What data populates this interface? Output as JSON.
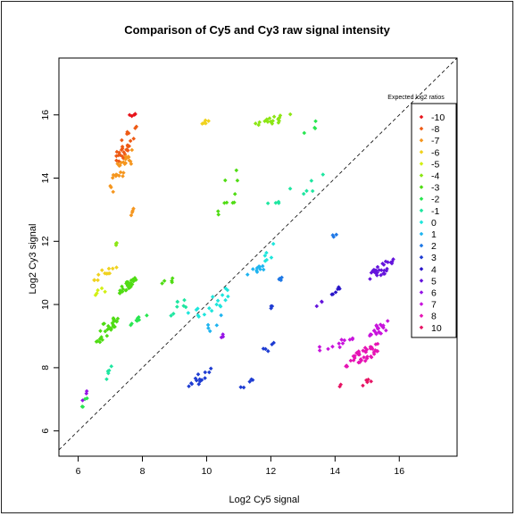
{
  "chart_data": {
    "type": "scatter",
    "title": "Comparison of Cy5 and Cy3 raw signal intensity",
    "xlabel": "Log2 Cy5 signal",
    "ylabel": "Log2 Cy3 signal",
    "xlim": [
      5.4,
      17.8
    ],
    "ylim": [
      5.2,
      17.8
    ],
    "xticks": [
      6,
      8,
      10,
      12,
      14,
      16
    ],
    "yticks": [
      6,
      8,
      10,
      12,
      14,
      16
    ],
    "grid": false,
    "diagonal": "y = x (dashed)",
    "legend": {
      "title": "Expected log2 ratios",
      "placement": "right",
      "entries": [
        {
          "label": "-10",
          "color": "#e8141c"
        },
        {
          "label": "-8",
          "color": "#ee5a14"
        },
        {
          "label": "-7",
          "color": "#f5961e"
        },
        {
          "label": "-6",
          "color": "#f0d21e"
        },
        {
          "label": "-5",
          "color": "#d2f014"
        },
        {
          "label": "-4",
          "color": "#8ce614"
        },
        {
          "label": "-3",
          "color": "#50dc14"
        },
        {
          "label": "-2",
          "color": "#28e650"
        },
        {
          "label": "-1",
          "color": "#1ee6a0"
        },
        {
          "label": "0",
          "color": "#1ee6dc"
        },
        {
          "label": "1",
          "color": "#1eb4f0"
        },
        {
          "label": "2",
          "color": "#1e78e6"
        },
        {
          "label": "3",
          "color": "#1e3cd2"
        },
        {
          "label": "4",
          "color": "#2814c8"
        },
        {
          "label": "5",
          "color": "#6414dc"
        },
        {
          "label": "6",
          "color": "#9614e6"
        },
        {
          "label": "7",
          "color": "#c814dc"
        },
        {
          "label": "8",
          "color": "#e614b4"
        },
        {
          "label": "10",
          "color": "#e61464"
        }
      ]
    },
    "clusters": [
      {
        "series": "-10",
        "x": [
          7.4,
          7.9
        ],
        "y": [
          15.9,
          16.05
        ],
        "n": 5
      },
      {
        "series": "-8",
        "x": [
          7.0,
          7.9
        ],
        "y": [
          14.3,
          15.8
        ],
        "n": 30
      },
      {
        "series": "-7",
        "x": [
          6.9,
          7.8
        ],
        "y": [
          13.4,
          15.0
        ],
        "n": 28
      },
      {
        "series": "-7",
        "x": [
          7.5,
          7.8
        ],
        "y": [
          12.7,
          13.1
        ],
        "n": 4
      },
      {
        "series": "-6",
        "x": [
          9.7,
          10.3
        ],
        "y": [
          15.6,
          16.0
        ],
        "n": 5
      },
      {
        "series": "-6",
        "x": [
          6.4,
          7.3
        ],
        "y": [
          10.7,
          11.3
        ],
        "n": 12
      },
      {
        "series": "-5",
        "x": [
          6.4,
          7.0
        ],
        "y": [
          10.2,
          10.6
        ],
        "n": 5
      },
      {
        "series": "-4",
        "x": [
          11.3,
          12.7
        ],
        "y": [
          15.6,
          16.05
        ],
        "n": 20
      },
      {
        "series": "-4",
        "x": [
          7.1,
          7.3
        ],
        "y": [
          11.8,
          12.0
        ],
        "n": 3
      },
      {
        "series": "-3",
        "x": [
          7.2,
          7.9
        ],
        "y": [
          10.3,
          10.9
        ],
        "n": 32
      },
      {
        "series": "-3",
        "x": [
          6.5,
          7.3
        ],
        "y": [
          8.7,
          9.7
        ],
        "n": 30
      },
      {
        "series": "-3",
        "x": [
          10.2,
          11.5
        ],
        "y": [
          12.6,
          14.9
        ],
        "n": 10
      },
      {
        "series": "-3",
        "x": [
          8.5,
          9.2
        ],
        "y": [
          10.6,
          10.9
        ],
        "n": 5
      },
      {
        "series": "-2",
        "x": [
          7.6,
          8.3
        ],
        "y": [
          9.3,
          9.8
        ],
        "n": 8
      },
      {
        "series": "-2",
        "x": [
          13.0,
          13.6
        ],
        "y": [
          15.4,
          15.9
        ],
        "n": 4
      },
      {
        "series": "-2",
        "x": [
          6.1,
          6.3
        ],
        "y": [
          6.7,
          7.1
        ],
        "n": 4
      },
      {
        "series": "-1",
        "x": [
          6.7,
          7.2
        ],
        "y": [
          7.5,
          8.2
        ],
        "n": 5
      },
      {
        "series": "-1",
        "x": [
          11.2,
          13.8
        ],
        "y": [
          12.5,
          14.2
        ],
        "n": 10
      },
      {
        "series": "-1",
        "x": [
          8.8,
          9.6
        ],
        "y": [
          9.6,
          10.4
        ],
        "n": 8
      },
      {
        "series": "0",
        "x": [
          9.2,
          11.0
        ],
        "y": [
          9.4,
          10.7
        ],
        "n": 18
      },
      {
        "series": "0",
        "x": [
          11.5,
          12.4
        ],
        "y": [
          11.2,
          12.2
        ],
        "n": 6
      },
      {
        "series": "1",
        "x": [
          11.2,
          12.0
        ],
        "y": [
          10.9,
          11.3
        ],
        "n": 10
      },
      {
        "series": "1",
        "x": [
          9.8,
          10.6
        ],
        "y": [
          9.0,
          9.8
        ],
        "n": 5
      },
      {
        "series": "2",
        "x": [
          12.2,
          12.4
        ],
        "y": [
          10.7,
          10.9
        ],
        "n": 4
      },
      {
        "series": "2",
        "x": [
          13.8,
          14.1
        ],
        "y": [
          12.0,
          12.3
        ],
        "n": 3
      },
      {
        "series": "3",
        "x": [
          9.3,
          10.2
        ],
        "y": [
          7.3,
          8.0
        ],
        "n": 14
      },
      {
        "series": "3",
        "x": [
          11.0,
          11.6
        ],
        "y": [
          7.3,
          7.7
        ],
        "n": 5
      },
      {
        "series": "3",
        "x": [
          11.6,
          12.1
        ],
        "y": [
          8.4,
          8.8
        ],
        "n": 5
      },
      {
        "series": "3",
        "x": [
          11.8,
          12.1
        ],
        "y": [
          9.8,
          10.0
        ],
        "n": 3
      },
      {
        "series": "4",
        "x": [
          13.8,
          14.2
        ],
        "y": [
          10.2,
          10.6
        ],
        "n": 6
      },
      {
        "series": "5",
        "x": [
          14.9,
          15.9
        ],
        "y": [
          10.7,
          11.5
        ],
        "n": 28
      },
      {
        "series": "5",
        "x": [
          13.4,
          13.7
        ],
        "y": [
          9.9,
          10.3
        ],
        "n": 3
      },
      {
        "series": "6",
        "x": [
          10.3,
          10.6
        ],
        "y": [
          8.8,
          9.2
        ],
        "n": 3
      },
      {
        "series": "7",
        "x": [
          13.3,
          14.7
        ],
        "y": [
          8.5,
          9.0
        ],
        "n": 12
      },
      {
        "series": "7",
        "x": [
          15.0,
          15.9
        ],
        "y": [
          8.9,
          9.6
        ],
        "n": 22
      },
      {
        "series": "8",
        "x": [
          14.3,
          15.6
        ],
        "y": [
          8.0,
          8.9
        ],
        "n": 40
      },
      {
        "series": "10",
        "x": [
          14.8,
          15.3
        ],
        "y": [
          7.4,
          7.8
        ],
        "n": 5
      },
      {
        "series": "10",
        "x": [
          14.0,
          14.2
        ],
        "y": [
          7.3,
          7.5
        ],
        "n": 2
      },
      {
        "series": "6",
        "x": [
          6.1,
          6.3
        ],
        "y": [
          6.9,
          7.3
        ],
        "n": 3
      }
    ]
  }
}
